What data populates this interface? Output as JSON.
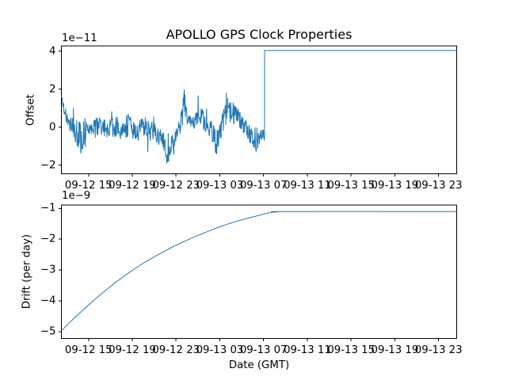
{
  "title": "APOLLO GPS Clock Properties",
  "colors": {
    "line": "#1f77b4",
    "axis": "#000000",
    "background": "#ffffff",
    "text": "#000000"
  },
  "chart_data": [
    {
      "type": "line",
      "name": "offset",
      "ylabel": "Offset",
      "y_scale_label": "1e−11",
      "ytick_values": [
        -2,
        0,
        2,
        4
      ],
      "ytick_labels": [
        "−2",
        "0",
        "2",
        "4"
      ],
      "ylim": [
        -2.45,
        4.28
      ],
      "xlim_hours": [
        0,
        36.13
      ],
      "x_tick_hours": [
        2.48,
        6.48,
        10.48,
        14.48,
        18.48,
        22.48,
        26.48,
        30.48,
        34.48
      ],
      "x_tick_labels": [
        "09-12 15",
        "09-12 19",
        "09-12 23",
        "09-13 03",
        "09-13 07",
        "09-13 11",
        "09-13 15",
        "09-13 19",
        "09-13 23"
      ],
      "series": {
        "description": "Noisy clock offset around 0 (±1e-11 band with spikes to ±2.2e-11) from 09-12 ~12:30 until a step at 09-13 ~07:10, then constant 4.04e-11 to the end",
        "anchor_format": [
          "hours_from_axis_left",
          "mean_x1e-11",
          "noise_amplitude_x1e-11"
        ],
        "noise_anchors": [
          [
            0.0,
            1.55,
            0.12
          ],
          [
            0.25,
            1.0,
            0.25
          ],
          [
            0.6,
            0.35,
            0.35
          ],
          [
            1.0,
            0.0,
            0.45
          ],
          [
            1.85,
            -0.6,
            0.9
          ],
          [
            2.2,
            -0.1,
            0.5
          ],
          [
            3.0,
            -0.05,
            0.55
          ],
          [
            3.8,
            0.1,
            0.5
          ],
          [
            4.4,
            -0.15,
            0.6
          ],
          [
            5.0,
            0.05,
            0.55
          ],
          [
            5.6,
            -0.1,
            0.6
          ],
          [
            6.2,
            0.15,
            0.6
          ],
          [
            6.8,
            -0.2,
            0.55
          ],
          [
            7.4,
            0.0,
            0.6
          ],
          [
            8.0,
            -0.1,
            0.55
          ],
          [
            8.6,
            -0.35,
            0.6
          ],
          [
            9.2,
            -0.5,
            0.5
          ],
          [
            9.65,
            -1.55,
            0.6
          ],
          [
            10.1,
            -0.9,
            0.45
          ],
          [
            10.6,
            -0.35,
            0.4
          ],
          [
            11.0,
            0.4,
            0.6
          ],
          [
            11.25,
            1.35,
            0.8
          ],
          [
            11.6,
            0.45,
            0.45
          ],
          [
            12.2,
            0.25,
            0.4
          ],
          [
            12.7,
            0.8,
            0.6
          ],
          [
            13.1,
            0.15,
            0.45
          ],
          [
            13.7,
            -0.1,
            0.5
          ],
          [
            14.2,
            -0.85,
            0.7
          ],
          [
            14.8,
            0.3,
            0.5
          ],
          [
            15.2,
            0.95,
            0.7
          ],
          [
            15.8,
            0.7,
            0.55
          ],
          [
            16.4,
            0.35,
            0.5
          ],
          [
            17.0,
            -0.2,
            0.45
          ],
          [
            17.75,
            -0.7,
            0.9
          ],
          [
            18.15,
            -0.45,
            0.35
          ],
          [
            18.57,
            -0.35,
            0.3
          ]
        ],
        "jump_hour": 18.57,
        "flat_value": 4.04,
        "end_hour": 36.13,
        "noise_seed": 20240913,
        "samples_per_hour": 30
      }
    },
    {
      "type": "line",
      "name": "drift",
      "ylabel": "Drift (per day)",
      "y_scale_label": "1e−9",
      "xlabel": "Date (GMT)",
      "ytick_values": [
        -5,
        -4,
        -3,
        -2,
        -1
      ],
      "ytick_labels": [
        "−5",
        "−4",
        "−3",
        "−2",
        "−1"
      ],
      "ylim": [
        -5.22,
        -0.889
      ],
      "xlim_hours": [
        0,
        36.13
      ],
      "x_tick_hours": [
        2.48,
        6.48,
        10.48,
        14.48,
        18.48,
        22.48,
        26.48,
        30.48,
        34.48
      ],
      "x_tick_labels": [
        "09-12 15",
        "09-12 19",
        "09-12 23",
        "09-13 03",
        "09-13 07",
        "09-13 11",
        "09-13 15",
        "09-13 19",
        "09-13 23"
      ],
      "points_format": [
        "hours_from_axis_left",
        "value_x1e-9"
      ],
      "points": [
        [
          0,
          -4.97
        ],
        [
          1,
          -4.62
        ],
        [
          2,
          -4.29
        ],
        [
          3,
          -3.97
        ],
        [
          4,
          -3.67
        ],
        [
          5,
          -3.39
        ],
        [
          6,
          -3.13
        ],
        [
          7,
          -2.89
        ],
        [
          8,
          -2.67
        ],
        [
          9,
          -2.47
        ],
        [
          10,
          -2.28
        ],
        [
          11,
          -2.11
        ],
        [
          12,
          -1.95
        ],
        [
          13,
          -1.8
        ],
        [
          14,
          -1.66
        ],
        [
          15,
          -1.53
        ],
        [
          16,
          -1.42
        ],
        [
          17,
          -1.32
        ],
        [
          18,
          -1.23
        ],
        [
          18.6,
          -1.17
        ],
        [
          19.2,
          -1.13
        ],
        [
          19.8,
          -1.11
        ],
        [
          20.4,
          -1.1
        ],
        [
          36.13,
          -1.1
        ]
      ]
    }
  ]
}
